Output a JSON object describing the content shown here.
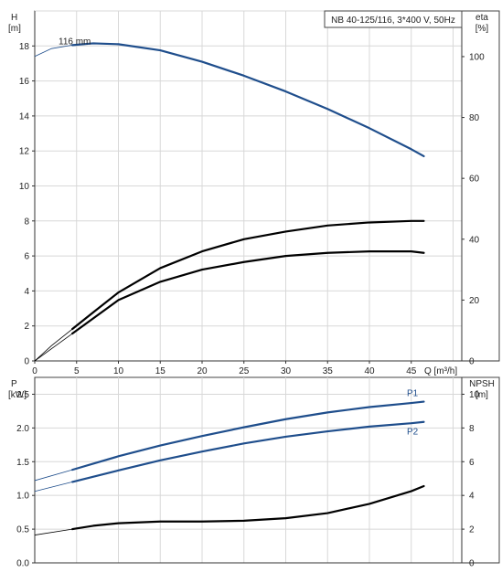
{
  "chart_data": [
    {
      "type": "line",
      "title": "NB 40-125/116, 3*400 V, 50Hz",
      "y_left_label": [
        "H",
        "[m]"
      ],
      "y_right_label": [
        "eta",
        "[%]"
      ],
      "x_label": "Q [m³/h]",
      "xlim": [
        0,
        50
      ],
      "ylim_left": [
        0,
        20
      ],
      "ylim_right": [
        0,
        115
      ],
      "x_ticks": [
        "0",
        "5",
        "10",
        "15",
        "20",
        "25",
        "30",
        "35",
        "40",
        "45"
      ],
      "y_left_ticks": [
        "0",
        "2",
        "4",
        "6",
        "8",
        "10",
        "12",
        "14",
        "16",
        "18"
      ],
      "y_right_ticks": [
        "0",
        "20",
        "40",
        "60",
        "80",
        "100"
      ],
      "grid": true,
      "series": [
        {
          "name": "116 mm",
          "axis": "left",
          "color": "#1f4e8c",
          "x": [
            4.5,
            7,
            10,
            15,
            20,
            25,
            30,
            35,
            40,
            45,
            46.5
          ],
          "y": [
            18.05,
            18.15,
            18.1,
            17.75,
            17.1,
            16.3,
            15.4,
            14.4,
            13.3,
            12.1,
            11.7
          ],
          "ext_x": [
            0,
            2,
            4.5
          ],
          "ext_y": [
            17.4,
            17.85,
            18.05
          ]
        },
        {
          "name": "",
          "axis": "right",
          "color": "#000000",
          "x": [
            4.5,
            7,
            10,
            15,
            20,
            25,
            30,
            35,
            40,
            45,
            46.5
          ],
          "y": [
            10.5,
            16,
            22.5,
            30.5,
            36,
            40,
            42.5,
            44.5,
            45.5,
            46,
            46
          ],
          "ext_x": [
            0,
            2,
            4.5
          ],
          "ext_y": [
            0,
            5,
            10.5
          ]
        },
        {
          "name": "",
          "axis": "right",
          "color": "#000000",
          "x": [
            4.5,
            7,
            10,
            15,
            20,
            25,
            30,
            35,
            40,
            45,
            46.5
          ],
          "y": [
            9,
            14,
            20,
            26,
            30,
            32.5,
            34.5,
            35.5,
            36,
            36,
            35.5
          ],
          "ext_x": [
            0,
            2,
            4.5
          ],
          "ext_y": [
            0,
            4,
            9
          ]
        }
      ]
    },
    {
      "type": "line",
      "title": "",
      "y_left_label": [
        "P",
        "[kW]"
      ],
      "y_right_label": [
        "NPSH",
        "[m]"
      ],
      "xlim": [
        0,
        50
      ],
      "ylim_left": [
        0,
        2.75
      ],
      "ylim_right": [
        0,
        11
      ],
      "y_left_ticks": [
        "0.0",
        "0.5",
        "1.0",
        "1.5",
        "2.0",
        "2.5"
      ],
      "y_right_ticks": [
        "0",
        "2",
        "4",
        "6",
        "8",
        "10"
      ],
      "grid": true,
      "series": [
        {
          "name": "P1",
          "axis": "left",
          "color": "#1f4e8c",
          "x": [
            4.5,
            10,
            15,
            20,
            25,
            30,
            35,
            40,
            45,
            46.5
          ],
          "y": [
            1.38,
            1.58,
            1.74,
            1.88,
            2.01,
            2.13,
            2.23,
            2.31,
            2.37,
            2.39
          ],
          "ext_x": [
            0,
            4.5
          ],
          "ext_y": [
            1.22,
            1.38
          ]
        },
        {
          "name": "P2",
          "axis": "left",
          "color": "#1f4e8c",
          "x": [
            4.5,
            10,
            15,
            20,
            25,
            30,
            35,
            40,
            45,
            46.5
          ],
          "y": [
            1.2,
            1.37,
            1.52,
            1.65,
            1.77,
            1.87,
            1.95,
            2.02,
            2.07,
            2.09
          ],
          "ext_x": [
            0,
            4.5
          ],
          "ext_y": [
            1.06,
            1.2
          ]
        },
        {
          "name": "",
          "axis": "right",
          "color": "#000000",
          "x": [
            4.5,
            7,
            10,
            15,
            20,
            25,
            30,
            35,
            40,
            45,
            46.5
          ],
          "y": [
            2.0,
            2.2,
            2.35,
            2.45,
            2.45,
            2.5,
            2.65,
            2.95,
            3.5,
            4.25,
            4.55
          ],
          "ext_x": [
            0,
            4.5
          ],
          "ext_y": [
            1.65,
            2.0
          ]
        }
      ]
    }
  ]
}
